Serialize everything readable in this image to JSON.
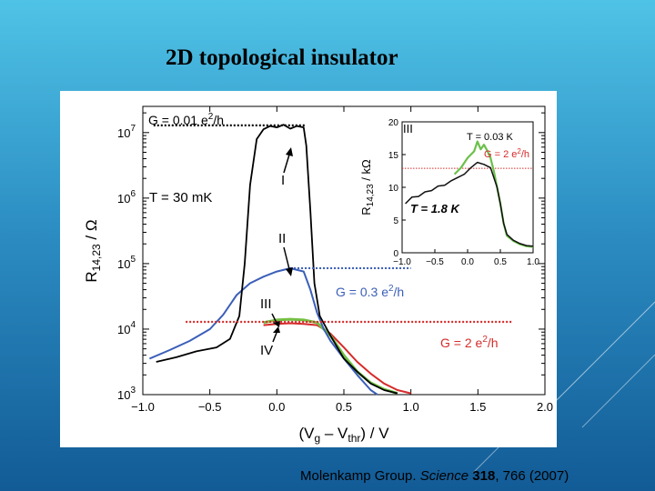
{
  "slide": {
    "title": "2D topological insulator",
    "citation": {
      "authors": "Molenkamp Group. ",
      "journal": "Science",
      "volume": "318",
      "pages": ", 766 (2007)"
    }
  },
  "colors": {
    "background_top": "#4fc3e6",
    "background_bottom": "#125b96",
    "curve_I": "#000000",
    "curve_II": "#3b5fb8",
    "curve_III": "#74c043",
    "curve_IV": "#d62b2b",
    "conductance_black": "#000000",
    "conductance_blue": "#3b5fb8",
    "conductance_red": "#d62b2b"
  },
  "chart_data": [
    {
      "type": "line",
      "panel": "main",
      "xlabel_main": "(V",
      "xlabel_sub1": "g",
      "xlabel_mid": " – V",
      "xlabel_sub2": "thr",
      "xlabel_end": ") / V",
      "ylabel_main": "R",
      "ylabel_sub": "14,23",
      "ylabel_end": " / Ω",
      "xlim": [
        -1.0,
        2.0
      ],
      "ylim_log10": [
        3,
        7.4
      ],
      "yscale": "log",
      "x_ticks": [
        -1.0,
        -0.5,
        0.0,
        0.5,
        1.0,
        1.5,
        2.0
      ],
      "x_tick_labels": [
        "−1.0",
        "−0.5",
        "0.0",
        "0.5",
        "1.0",
        "1.5",
        "2.0"
      ],
      "y_ticks_log10": [
        3,
        4,
        5,
        6,
        7
      ],
      "y_tick_bases": [
        "10",
        "10",
        "10",
        "10",
        "10"
      ],
      "y_tick_exps": [
        "3",
        "4",
        "5",
        "6",
        "7"
      ],
      "annotations": {
        "temperature": "T = 30 mK",
        "I": "I",
        "II": "II",
        "III": "III",
        "IV": "IV"
      },
      "conductance_lines": [
        {
          "id": "G001",
          "label": "G = 0.01 e",
          "sup": "2",
          "end": "/h",
          "log10R": 7.11,
          "x": [
            -0.92,
            0.22
          ]
        },
        {
          "id": "G03",
          "label": "G = 0.3 e",
          "sup": "2",
          "end": "/h",
          "log10R": 4.93,
          "x": [
            0.1,
            1.0
          ]
        },
        {
          "id": "G2",
          "label": "G = 2 e",
          "sup": "2",
          "end": "/h",
          "log10R": 4.11,
          "x": [
            -0.68,
            1.75
          ]
        }
      ],
      "series": [
        {
          "name": "I",
          "x": [
            -0.9,
            -0.75,
            -0.6,
            -0.45,
            -0.35,
            -0.28,
            -0.24,
            -0.2,
            -0.15,
            -0.1,
            -0.05,
            0.0,
            0.05,
            0.1,
            0.15,
            0.2,
            0.22,
            0.25,
            0.28,
            0.32,
            0.4,
            0.5,
            0.6,
            0.7,
            0.8,
            0.9
          ],
          "log10R": [
            3.5,
            3.57,
            3.66,
            3.72,
            3.85,
            4.2,
            5.0,
            6.2,
            6.9,
            7.05,
            7.1,
            7.08,
            7.12,
            7.06,
            7.1,
            7.08,
            6.8,
            5.8,
            4.7,
            4.2,
            3.9,
            3.55,
            3.35,
            3.17,
            3.07,
            3.02
          ]
        },
        {
          "name": "II",
          "x": [
            -0.95,
            -0.8,
            -0.65,
            -0.5,
            -0.4,
            -0.3,
            -0.2,
            -0.1,
            0.0,
            0.1,
            0.2,
            0.25,
            0.3,
            0.35,
            0.4,
            0.5,
            0.6,
            0.7,
            0.75
          ],
          "log10R": [
            3.55,
            3.68,
            3.82,
            4.0,
            4.22,
            4.52,
            4.7,
            4.8,
            4.88,
            4.93,
            4.88,
            4.6,
            4.25,
            4.0,
            3.82,
            3.55,
            3.3,
            3.07,
            3.0
          ]
        },
        {
          "name": "III",
          "x": [
            -0.1,
            0.0,
            0.1,
            0.2,
            0.3,
            0.4,
            0.5,
            0.6,
            0.7,
            0.8,
            0.9
          ],
          "log10R": [
            4.1,
            4.14,
            4.15,
            4.14,
            4.1,
            3.9,
            3.6,
            3.35,
            3.18,
            3.08,
            3.02
          ]
        },
        {
          "name": "IV",
          "x": [
            -0.1,
            0.0,
            0.1,
            0.2,
            0.3,
            0.35,
            0.4,
            0.5,
            0.6,
            0.7,
            0.8,
            0.9,
            1.0
          ],
          "log10R": [
            4.06,
            4.08,
            4.09,
            4.08,
            4.06,
            4.0,
            3.93,
            3.72,
            3.5,
            3.32,
            3.17,
            3.07,
            3.02
          ]
        }
      ]
    },
    {
      "type": "line",
      "panel": "inset",
      "ylabel_main": "R",
      "ylabel_sub": "14,23",
      "ylabel_end": " / kΩ",
      "xlim": [
        -1.0,
        1.0
      ],
      "ylim": [
        0,
        20
      ],
      "x_ticks": [
        -1.0,
        -0.5,
        0.0,
        0.5,
        1.0
      ],
      "x_tick_labels": [
        "−1.0",
        "−0.5",
        "0.0",
        "0.5",
        "1.0"
      ],
      "y_ticks": [
        0,
        5,
        10,
        15,
        20
      ],
      "y_tick_labels": [
        "0",
        "5",
        "10",
        "15",
        "20"
      ],
      "annotations": {
        "panel_label": "III",
        "t_low": "T = 0.03 K",
        "g_label": "G = 2 e",
        "g_sup": "2",
        "g_end": "/h",
        "t_high": "T = 1.8 K"
      },
      "reference_line_R": 12.9,
      "series": [
        {
          "name": "T = 0.03 K",
          "x": [
            -0.2,
            -0.1,
            0.0,
            0.1,
            0.15,
            0.2,
            0.25,
            0.3,
            0.35,
            0.4,
            0.45,
            0.5,
            0.55,
            0.6,
            0.7,
            0.8,
            0.9,
            1.0
          ],
          "y": [
            12.0,
            13.0,
            14.5,
            15.5,
            17.0,
            15.8,
            16.5,
            15.6,
            14.5,
            12.5,
            10.0,
            7.5,
            4.5,
            2.6,
            1.8,
            1.3,
            1.0,
            0.9
          ]
        },
        {
          "name": "T = 1.8 K",
          "x": [
            -0.95,
            -0.85,
            -0.75,
            -0.65,
            -0.55,
            -0.45,
            -0.35,
            -0.25,
            -0.15,
            -0.05,
            0.05,
            0.15,
            0.25,
            0.35,
            0.45,
            0.5,
            0.55,
            0.6,
            0.7,
            0.8,
            0.9,
            1.0
          ],
          "y": [
            7.5,
            8.5,
            8.6,
            9.3,
            9.5,
            10.2,
            10.3,
            11.0,
            11.5,
            12.0,
            13.0,
            13.8,
            13.5,
            13.0,
            10.0,
            7.5,
            4.5,
            2.8,
            1.9,
            1.4,
            1.1,
            1.0
          ]
        }
      ]
    }
  ]
}
